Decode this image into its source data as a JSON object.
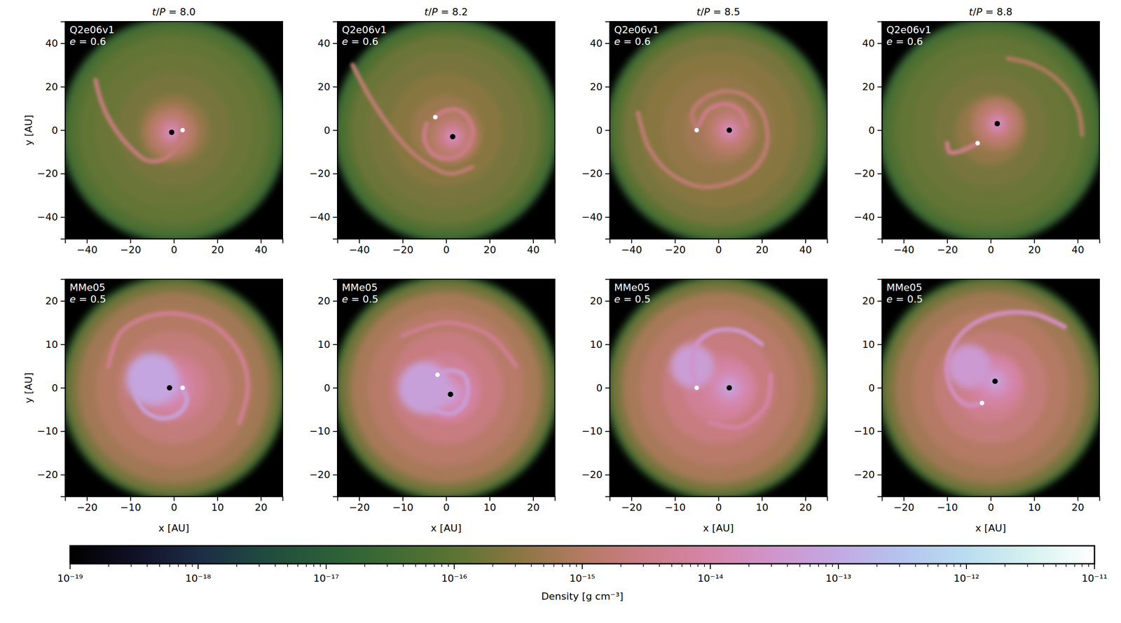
{
  "chart_data": [
    {
      "type": "density_map",
      "title": "t/P = 8.0",
      "label": "Q2e06v1",
      "annotation": "e = 0.6",
      "ylabel": "y [AU]",
      "xlim": [
        -50,
        50
      ],
      "ylim": [
        -50,
        50
      ],
      "xticks": [
        {
          "value": -40,
          "label": "−40"
        },
        {
          "value": -20,
          "label": "−20"
        },
        0,
        20,
        40
      ],
      "yticks": [
        {
          "value": -40,
          "label": "−40"
        },
        {
          "value": -20,
          "label": "−20"
        },
        0,
        20,
        40
      ],
      "disk_profile": {
        "r": [
          52,
          49,
          44,
          36,
          26,
          16
        ],
        "values": [
          2e-17,
          6e-17,
          1.2e-16,
          1.5e-16,
          2e-16,
          4e-16
        ]
      },
      "core_profile": {
        "r": [
          12,
          8,
          5,
          3,
          1.5
        ],
        "values": [
          1e-15,
          2e-15,
          5e-15,
          1.2e-14,
          3e-14
        ]
      },
      "arms": [
        {
          "x": [
            -36,
            -33,
            -28,
            -20,
            -12,
            -4,
            2,
            4
          ],
          "y": [
            23,
            12,
            2,
            -8,
            -14,
            -13,
            -6,
            0
          ],
          "value": 2e-15
        }
      ],
      "primary": {
        "x": -1,
        "y": -1,
        "marker": "circle",
        "color": "#000000"
      },
      "companion": {
        "x": 4,
        "y": 0,
        "marker": "circle",
        "color": "#ffffff"
      }
    },
    {
      "type": "density_map",
      "title": "t/P = 8.2",
      "label": "Q2e06v1",
      "annotation": "e = 0.6",
      "xlim": [
        -50,
        50
      ],
      "ylim": [
        -50,
        50
      ],
      "xticks": [
        {
          "value": -40,
          "label": "−40"
        },
        {
          "value": -20,
          "label": "−20"
        },
        0,
        20,
        40
      ],
      "yticks": [
        {
          "value": -40,
          "label": "−40"
        },
        {
          "value": -20,
          "label": "−20"
        },
        0,
        20,
        40
      ],
      "disk_profile": {
        "r": [
          52,
          49,
          44,
          36,
          26,
          16
        ],
        "values": [
          2e-17,
          6e-17,
          1.5e-16,
          2e-16,
          3e-16,
          5e-16
        ]
      },
      "core_profile": {
        "r": [
          12,
          8,
          5,
          3,
          1.5
        ],
        "values": [
          1e-15,
          2e-15,
          5e-15,
          1.2e-14,
          3e-14
        ]
      },
      "arms": [
        {
          "x": [
            -5,
            0,
            6,
            11,
            12,
            8,
            1,
            -6,
            -10,
            -9
          ],
          "y": [
            6,
            9,
            9,
            4,
            -3,
            -10,
            -13,
            -11,
            -4,
            3
          ],
          "value": 3e-15
        },
        {
          "x": [
            -43,
            -35,
            -27,
            -18,
            -8,
            2,
            12
          ],
          "y": [
            30,
            15,
            3,
            -8,
            -16,
            -20,
            -17
          ],
          "value": 1.5e-15
        }
      ],
      "primary": {
        "x": 3,
        "y": -3,
        "marker": "circle",
        "color": "#000000"
      },
      "companion": {
        "x": -5,
        "y": 6,
        "marker": "circle",
        "color": "#ffffff"
      }
    },
    {
      "type": "density_map",
      "title": "t/P = 8.5",
      "label": "Q2e06v1",
      "annotation": "e = 0.6",
      "xlim": [
        -50,
        50
      ],
      "ylim": [
        -50,
        50
      ],
      "xticks": [
        {
          "value": -40,
          "label": "−40"
        },
        {
          "value": -20,
          "label": "−20"
        },
        0,
        20,
        40
      ],
      "yticks": [
        {
          "value": -40,
          "label": "−40"
        },
        {
          "value": -20,
          "label": "−20"
        },
        0,
        20,
        40
      ],
      "disk_profile": {
        "r": [
          52,
          49,
          44,
          36,
          26,
          16
        ],
        "values": [
          2e-17,
          8e-17,
          2e-16,
          3e-16,
          4e-16,
          6e-16
        ]
      },
      "core_profile": {
        "r": [
          12,
          8,
          5,
          3,
          1.5
        ],
        "values": [
          1e-15,
          2e-15,
          5e-15,
          1.2e-14,
          3e-14
        ]
      },
      "arms": [
        {
          "x": [
            -10,
            -12,
            -6,
            4,
            14,
            21,
            22,
            16,
            6,
            -8,
            -22,
            -32,
            -37
          ],
          "y": [
            0,
            8,
            15,
            18,
            15,
            6,
            -8,
            -18,
            -24,
            -26,
            -20,
            -8,
            8
          ],
          "value": 1.5e-15
        },
        {
          "x": [
            -9,
            -5,
            3,
            10,
            13
          ],
          "y": [
            2,
            9,
            12,
            9,
            2
          ],
          "value": 3e-15
        }
      ],
      "primary": {
        "x": 5,
        "y": 0,
        "marker": "circle",
        "color": "#000000"
      },
      "companion": {
        "x": -10,
        "y": 0,
        "marker": "circle",
        "color": "#ffffff"
      }
    },
    {
      "type": "density_map",
      "title": "t/P = 8.8",
      "label": "Q2e06v1",
      "annotation": "e = 0.6",
      "xlim": [
        -50,
        50
      ],
      "ylim": [
        -50,
        50
      ],
      "xticks": [
        {
          "value": -40,
          "label": "−40"
        },
        {
          "value": -20,
          "label": "−20"
        },
        0,
        20,
        40
      ],
      "yticks": [
        {
          "value": -40,
          "label": "−40"
        },
        {
          "value": -20,
          "label": "−20"
        },
        0,
        20,
        40
      ],
      "disk_profile": {
        "r": [
          52,
          49,
          44,
          36,
          26,
          16
        ],
        "values": [
          2e-17,
          6e-17,
          1.2e-16,
          1.5e-16,
          2e-16,
          4e-16
        ]
      },
      "core_profile": {
        "r": [
          12,
          8,
          5,
          3,
          1.5
        ],
        "values": [
          1e-15,
          2e-15,
          5e-15,
          1.2e-14,
          3e-14
        ]
      },
      "arms": [
        {
          "x": [
            -6,
            -10,
            -15,
            -19,
            -20
          ],
          "y": [
            -6,
            -8,
            -10,
            -10,
            -6
          ],
          "value": 3e-15
        },
        {
          "x": [
            8,
            20,
            32,
            40,
            42
          ],
          "y": [
            33,
            30,
            22,
            10,
            -2
          ],
          "value": 8e-16
        }
      ],
      "primary": {
        "x": 3,
        "y": 3,
        "marker": "circle",
        "color": "#000000"
      },
      "companion": {
        "x": -6,
        "y": -6,
        "marker": "circle",
        "color": "#ffffff"
      }
    },
    {
      "type": "density_map",
      "label": "MMe05",
      "annotation": "e = 0.5",
      "xlabel": "x [AU]",
      "ylabel": "y [AU]",
      "xlim": [
        -25,
        25
      ],
      "ylim": [
        -25,
        25
      ],
      "xticks": [
        {
          "value": -20,
          "label": "−20"
        },
        {
          "value": -10,
          "label": "−10"
        },
        0,
        10,
        20
      ],
      "yticks": [
        {
          "value": -20,
          "label": "−20"
        },
        {
          "value": -10,
          "label": "−10"
        },
        0,
        10,
        20
      ],
      "disk_profile": {
        "r": [
          26,
          24.5,
          22,
          18,
          13,
          8
        ],
        "values": [
          3e-17,
          2e-16,
          6e-16,
          1e-15,
          2e-15,
          4e-15
        ]
      },
      "core_profile": {
        "r": [
          6,
          4,
          2.5,
          1.2,
          0.6
        ],
        "values": [
          8e-15,
          1.5e-14,
          3e-14,
          6e-14,
          1.5e-13
        ]
      },
      "clumps": [
        {
          "x": -5,
          "y": 2,
          "r": 6,
          "value": 8e-14
        }
      ],
      "arms": [
        {
          "x": [
            2,
            3,
            1,
            -3,
            -7,
            -9
          ],
          "y": [
            0,
            -3,
            -6,
            -7,
            -5,
            -1
          ],
          "value": 6e-14
        },
        {
          "x": [
            -15,
            -12,
            -3,
            8,
            15,
            17,
            15
          ],
          "y": [
            5,
            13,
            17,
            15,
            8,
            0,
            -8
          ],
          "value": 4e-15
        }
      ],
      "primary": {
        "x": -1,
        "y": 0,
        "marker": "circle",
        "color": "#000000"
      },
      "companion": {
        "x": 2,
        "y": 0,
        "marker": "circle",
        "color": "#ffffff"
      }
    },
    {
      "type": "density_map",
      "label": "MMe05",
      "annotation": "e = 0.5",
      "xlabel": "x [AU]",
      "xlim": [
        -25,
        25
      ],
      "ylim": [
        -25,
        25
      ],
      "xticks": [
        {
          "value": -20,
          "label": "−20"
        },
        {
          "value": -10,
          "label": "−10"
        },
        0,
        10,
        20
      ],
      "yticks": [
        {
          "value": -20,
          "label": "−20"
        },
        {
          "value": -10,
          "label": "−10"
        },
        0,
        10,
        20
      ],
      "disk_profile": {
        "r": [
          26,
          24.5,
          22,
          18,
          13,
          8
        ],
        "values": [
          3e-17,
          2e-16,
          7e-16,
          1.2e-15,
          2.5e-15,
          5e-15
        ]
      },
      "core_profile": {
        "r": [
          6,
          4,
          2.5,
          1.2,
          0.6
        ],
        "values": [
          8e-15,
          1.5e-14,
          3e-14,
          6e-14,
          1.5e-13
        ]
      },
      "clumps": [
        {
          "x": -5,
          "y": 0,
          "r": 6,
          "value": 6e-14
        }
      ],
      "arms": [
        {
          "x": [
            -2,
            1,
            4,
            5,
            4,
            1,
            -3
          ],
          "y": [
            3,
            4,
            3,
            0,
            -4,
            -6,
            -5
          ],
          "value": 5e-14
        },
        {
          "x": [
            -10,
            0,
            10,
            16
          ],
          "y": [
            12,
            15,
            12,
            5
          ],
          "value": 4e-15
        }
      ],
      "primary": {
        "x": 1,
        "y": -1.5,
        "marker": "circle",
        "color": "#000000"
      },
      "companion": {
        "x": -2,
        "y": 3,
        "marker": "circle",
        "color": "#ffffff"
      }
    },
    {
      "type": "density_map",
      "label": "MMe05",
      "annotation": "e = 0.5",
      "xlabel": "x [AU]",
      "xlim": [
        -25,
        25
      ],
      "ylim": [
        -25,
        25
      ],
      "xticks": [
        {
          "value": -20,
          "label": "−20"
        },
        {
          "value": -10,
          "label": "−10"
        },
        0,
        10,
        20
      ],
      "yticks": [
        {
          "value": -20,
          "label": "−20"
        },
        {
          "value": -10,
          "label": "−10"
        },
        0,
        10,
        20
      ],
      "disk_profile": {
        "r": [
          26,
          24.5,
          22,
          18,
          13,
          8
        ],
        "values": [
          3e-17,
          2e-16,
          7e-16,
          1.2e-15,
          2.5e-15,
          5e-15
        ]
      },
      "core_profile": {
        "r": [
          6,
          4,
          2.5,
          1.2,
          0.6
        ],
        "values": [
          8e-15,
          1.5e-14,
          3e-14,
          6e-14,
          1.5e-13
        ]
      },
      "clumps": [
        {
          "x": -6,
          "y": 5,
          "r": 5,
          "value": 5e-14
        }
      ],
      "arms": [
        {
          "x": [
            -5,
            -6,
            -5,
            -1,
            5,
            10
          ],
          "y": [
            0,
            5,
            10,
            13,
            13,
            10
          ],
          "value": 3e-14
        },
        {
          "x": [
            -2,
            5,
            11,
            12
          ],
          "y": [
            -8,
            -9,
            -4,
            3
          ],
          "value": 8e-15
        }
      ],
      "primary": {
        "x": 2.5,
        "y": 0,
        "marker": "circle",
        "color": "#000000"
      },
      "companion": {
        "x": -5,
        "y": 0,
        "marker": "circle",
        "color": "#ffffff"
      }
    },
    {
      "type": "density_map",
      "label": "MMe05",
      "annotation": "e = 0.5",
      "xlabel": "x [AU]",
      "xlim": [
        -25,
        25
      ],
      "ylim": [
        -25,
        25
      ],
      "xticks": [
        {
          "value": -20,
          "label": "−20"
        },
        {
          "value": -10,
          "label": "−10"
        },
        0,
        10,
        20
      ],
      "yticks": [
        {
          "value": -20,
          "label": "−20"
        },
        {
          "value": -10,
          "label": "−10"
        },
        0,
        10,
        20
      ],
      "disk_profile": {
        "r": [
          26,
          24.5,
          22,
          18,
          13,
          8
        ],
        "values": [
          3e-17,
          2e-16,
          6e-16,
          1e-15,
          2e-15,
          4e-15
        ]
      },
      "core_profile": {
        "r": [
          6,
          4,
          2.5,
          1.2,
          0.6
        ],
        "values": [
          8e-15,
          1.5e-14,
          3e-14,
          6e-14,
          1.5e-13
        ]
      },
      "clumps": [
        {
          "x": -5,
          "y": 5,
          "r": 5,
          "value": 4e-14
        }
      ],
      "arms": [
        {
          "x": [
            -2,
            -5,
            -8,
            -10,
            -9,
            -5,
            2,
            10,
            17
          ],
          "y": [
            -3.5,
            -4,
            -2,
            3,
            9,
            14,
            17,
            17,
            14
          ],
          "value": 2e-14
        }
      ],
      "primary": {
        "x": 1,
        "y": 1.5,
        "marker": "circle",
        "color": "#000000"
      },
      "companion": {
        "x": -2,
        "y": -3.5,
        "marker": "circle",
        "color": "#ffffff"
      }
    },
    {
      "type": "colorbar",
      "xlabel": "Density [g cm⁻³]",
      "log": "x",
      "xlim": [
        1e-19,
        1e-11
      ],
      "xticks": [
        {
          "value": 1e-19,
          "label": "10⁻¹⁹"
        },
        {
          "value": 1e-18,
          "label": "10⁻¹⁸"
        },
        {
          "value": 1e-17,
          "label": "10⁻¹⁷"
        },
        {
          "value": 1e-16,
          "label": "10⁻¹⁶"
        },
        {
          "value": 1e-15,
          "label": "10⁻¹⁵"
        },
        {
          "value": 1e-14,
          "label": "10⁻¹⁴"
        },
        {
          "value": 1e-13,
          "label": "10⁻¹³"
        },
        {
          "value": 1e-12,
          "label": "10⁻¹²"
        },
        {
          "value": 1e-11,
          "label": "10⁻¹¹"
        }
      ],
      "minor_ticks": [
        2e-19,
        3e-19,
        4e-19,
        5e-19,
        6e-19,
        7e-19,
        8e-19,
        9e-19,
        2e-18,
        3e-18,
        4e-18,
        5e-18,
        6e-18,
        7e-18,
        8e-18,
        9e-18,
        2e-17,
        3e-17,
        4e-17,
        5e-17,
        6e-17,
        7e-17,
        8e-17,
        9e-17,
        2e-16,
        3e-16,
        4e-16,
        5e-16,
        6e-16,
        7e-16,
        8e-16,
        9e-16,
        2e-15,
        3e-15,
        4e-15,
        5e-15,
        6e-15,
        7e-15,
        8e-15,
        9e-15,
        2e-14,
        3e-14,
        4e-14,
        5e-14,
        6e-14,
        7e-14,
        8e-14,
        9e-14,
        2e-13,
        3e-13,
        4e-13,
        5e-13,
        6e-13,
        7e-13,
        8e-13,
        9e-13,
        2e-12,
        3e-12,
        4e-12,
        5e-12,
        6e-12,
        7e-12,
        8e-12,
        9e-12
      ],
      "stops": [
        1e-19,
        3.16e-19,
        1e-18,
        3.16e-18,
        1e-17,
        3.16e-17,
        1e-16,
        3.16e-16,
        1e-15,
        3.16e-15,
        1e-14,
        3.16e-14,
        1e-13,
        3.16e-13,
        1e-12,
        3.16e-12,
        1e-11
      ],
      "colors": [
        "#000000",
        "#101025",
        "#1c2c45",
        "#1f4a40",
        "#2a5e38",
        "#3f6b33",
        "#5b7433",
        "#8a7642",
        "#b47a63",
        "#cc7d88",
        "#d585a8",
        "#cf95cc",
        "#c2a9e3",
        "#b5c4ef",
        "#b9ddf0",
        "#d6f2ef",
        "#ffffff"
      ]
    }
  ]
}
